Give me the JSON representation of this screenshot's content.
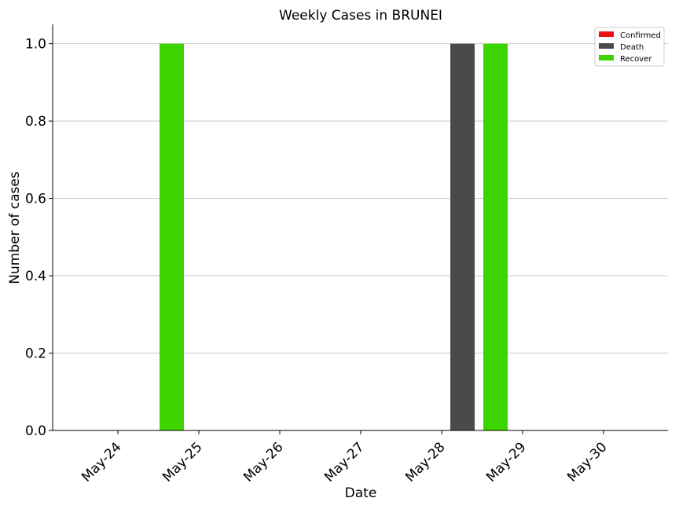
{
  "chart_data": {
    "type": "bar",
    "title": "Weekly Cases in BRUNEI",
    "xlabel": "Date",
    "ylabel": "Number of cases",
    "categories": [
      "May-24",
      "May-25",
      "May-26",
      "May-27",
      "May-28",
      "May-29",
      "May-30"
    ],
    "ylim": [
      0,
      1.05
    ],
    "yticks": [
      "0.0",
      "0.2",
      "0.4",
      "0.6",
      "0.8",
      "1.0"
    ],
    "grid": "horizontal",
    "legend_position": "top-right",
    "series": [
      {
        "name": "Confirmed",
        "color": "#ee1111",
        "values": [
          0,
          0,
          0,
          0,
          0,
          0,
          0
        ]
      },
      {
        "name": "Death",
        "color": "#4a4a4a",
        "values": [
          0,
          0,
          0,
          0,
          1,
          0,
          0
        ]
      },
      {
        "name": "Recover",
        "color": "#3dd400",
        "values": [
          0,
          1,
          0,
          0,
          0,
          1,
          0
        ]
      }
    ]
  }
}
